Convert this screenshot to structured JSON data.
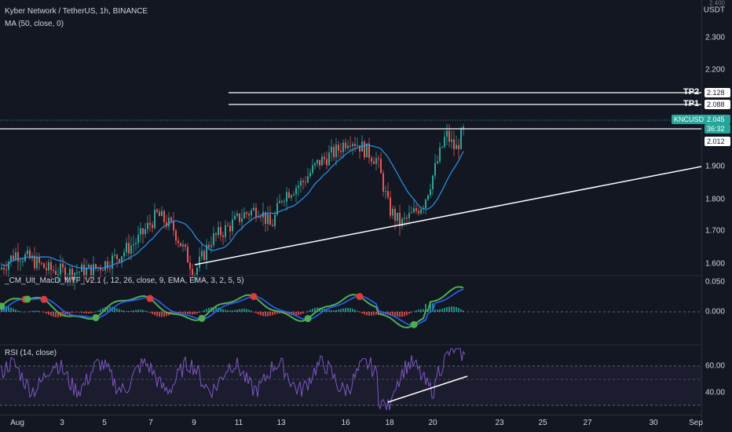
{
  "header": {
    "symbol_title": "Kyber Network / TetherUS, 1h, BINANCE",
    "indicator_ma": "MA (50, close, 0)"
  },
  "macd_pane": {
    "title": "_CM_Ult_MacD_MTF_V2.1 (, 12, 26, close, 9, EMA, EMA, 3, 2, 5, 5)"
  },
  "rsi_pane": {
    "title": "RSI (14, close)"
  },
  "price_scale": {
    "currency": "USDT",
    "top_cut": "2.400",
    "ticks": [
      "2.300",
      "2.200",
      "1.900",
      "1.800",
      "1.700",
      "1.600"
    ],
    "macd_ticks": [
      "0.050",
      "0.000"
    ],
    "rsi_ticks": [
      "60.00",
      "40.00"
    ]
  },
  "price_tags": {
    "tp2": "2.128",
    "tp1": "2.088",
    "symbol_tag": "KNCUSDT",
    "last": "2.045",
    "countdown": "36:32",
    "resistance": "2.012"
  },
  "labels": {
    "tp2": "TP2",
    "tp1": "TP1"
  },
  "time_axis": [
    "Aug",
    "3",
    "5",
    "7",
    "9",
    "11",
    "13",
    "16",
    "18",
    "20",
    "23",
    "25",
    "27",
    "30",
    "Sep"
  ],
  "colors": {
    "background": "#131722",
    "up": "#26a69a",
    "down": "#ef5350",
    "ma": "#2196f3",
    "rsi": "#7e57c2",
    "macd_line": "#4caf50",
    "signal_line": "#2962ff"
  }
}
